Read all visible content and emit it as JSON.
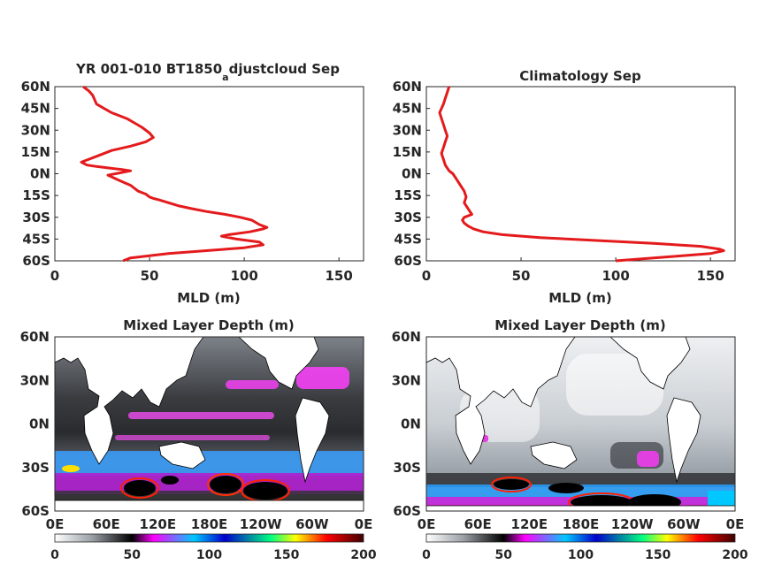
{
  "colors": {
    "profile_line": "#e41a1c",
    "axis": "#262626",
    "background": "#ffffff"
  },
  "colormap_stops": [
    "#ffffff",
    "#9aa0a6",
    "#000000",
    "#ff00ff",
    "#00c8ff",
    "#0000cc",
    "#00ff80",
    "#ffff00",
    "#ff0000",
    "#400000"
  ],
  "chart_data": [
    {
      "type": "line",
      "panel": "top-left",
      "title_main": "YR 001-010 BT1850",
      "title_sub": "a",
      "title_rest": "djustcloud Sep",
      "xlabel": "MLD (m)",
      "ylabel": "",
      "xlim": [
        0,
        163
      ],
      "ylim": [
        -60,
        60
      ],
      "xticks": [
        "0",
        "50",
        "100",
        "150"
      ],
      "xtick_values": [
        0,
        50,
        100,
        150
      ],
      "yticks": [
        "60N",
        "45N",
        "30N",
        "15N",
        "0N",
        "15S",
        "30S",
        "45S",
        "60S"
      ],
      "ytick_values": [
        60,
        45,
        30,
        15,
        0,
        -15,
        -30,
        -45,
        -60
      ],
      "series": [
        {
          "x": [
            15,
            18,
            20,
            22,
            30,
            38,
            42,
            46,
            50,
            52,
            48,
            40,
            30,
            24,
            18,
            14,
            17,
            22,
            28,
            35,
            40,
            32,
            28,
            33,
            40,
            44,
            48,
            50,
            52,
            55,
            60,
            65,
            72,
            80,
            90,
            98,
            104,
            108,
            112,
            110,
            103,
            92,
            88,
            96,
            108,
            110,
            100,
            80,
            60,
            40,
            36
          ],
          "y": [
            60,
            57,
            54,
            48,
            42,
            38,
            35,
            32,
            28,
            25,
            22,
            19,
            16,
            13,
            10,
            8,
            6,
            5,
            4,
            3,
            2,
            0,
            -1,
            -4,
            -8,
            -12,
            -14,
            -16,
            -17,
            -18,
            -20,
            -22,
            -24,
            -26,
            -28,
            -30,
            -32,
            -35,
            -37,
            -38,
            -40,
            -42,
            -43,
            -45,
            -47,
            -49,
            -51,
            -53,
            -55,
            -58,
            -60
          ]
        }
      ]
    },
    {
      "type": "line",
      "panel": "top-right",
      "title_main": "Climatology Sep",
      "title_sub": "",
      "title_rest": "",
      "xlabel": "MLD (m)",
      "ylabel": "",
      "xlim": [
        0,
        163
      ],
      "ylim": [
        -60,
        60
      ],
      "xticks": [
        "0",
        "50",
        "100",
        "150"
      ],
      "xtick_values": [
        0,
        50,
        100,
        150
      ],
      "yticks": [
        "60N",
        "45N",
        "30N",
        "15N",
        "0N",
        "15S",
        "30S",
        "45S",
        "60S"
      ],
      "ytick_values": [
        60,
        45,
        30,
        15,
        0,
        -15,
        -30,
        -45,
        -60
      ],
      "series": [
        {
          "x": [
            12,
            11,
            10,
            9,
            8,
            7,
            8,
            9,
            10,
            11,
            10,
            9,
            8,
            9,
            10,
            12,
            14,
            16,
            18,
            20,
            21,
            20,
            22,
            24,
            20,
            19,
            20,
            22,
            25,
            30,
            40,
            60,
            90,
            120,
            145,
            155,
            157,
            150,
            130,
            110,
            100
          ],
          "y": [
            60,
            56,
            52,
            48,
            45,
            42,
            38,
            34,
            30,
            26,
            22,
            18,
            14,
            10,
            6,
            2,
            0,
            -4,
            -8,
            -12,
            -16,
            -20,
            -24,
            -28,
            -30,
            -32,
            -34,
            -36,
            -38,
            -40,
            -42,
            -44,
            -46,
            -48,
            -50,
            -52,
            -53,
            -55,
            -57,
            -59,
            -60
          ]
        }
      ]
    },
    {
      "type": "heatmap",
      "panel": "bottom-left",
      "title": "Mixed Layer Depth (m)",
      "xticks": [
        "0E",
        "60E",
        "120E",
        "180E",
        "120W",
        "60W",
        "0E"
      ],
      "yticks": [
        "60N",
        "30N",
        "0N",
        "30S",
        "60S"
      ],
      "xlim": [
        0,
        360
      ],
      "ylim": [
        -60,
        60
      ],
      "colorbar": {
        "ticks": [
          "0",
          "50",
          "100",
          "150",
          "200"
        ],
        "values": [
          0,
          50,
          100,
          150,
          200
        ]
      }
    },
    {
      "type": "heatmap",
      "panel": "bottom-right",
      "title": "Mixed Layer Depth (m)",
      "xticks": [
        "0E",
        "60E",
        "120E",
        "180E",
        "120W",
        "60W",
        "0E"
      ],
      "yticks": [
        "60N",
        "30N",
        "0N",
        "30S",
        "60S"
      ],
      "xlim": [
        0,
        360
      ],
      "ylim": [
        -60,
        60
      ],
      "colorbar": {
        "ticks": [
          "0",
          "50",
          "100",
          "150",
          "200"
        ],
        "values": [
          0,
          50,
          100,
          150,
          200
        ]
      }
    }
  ]
}
